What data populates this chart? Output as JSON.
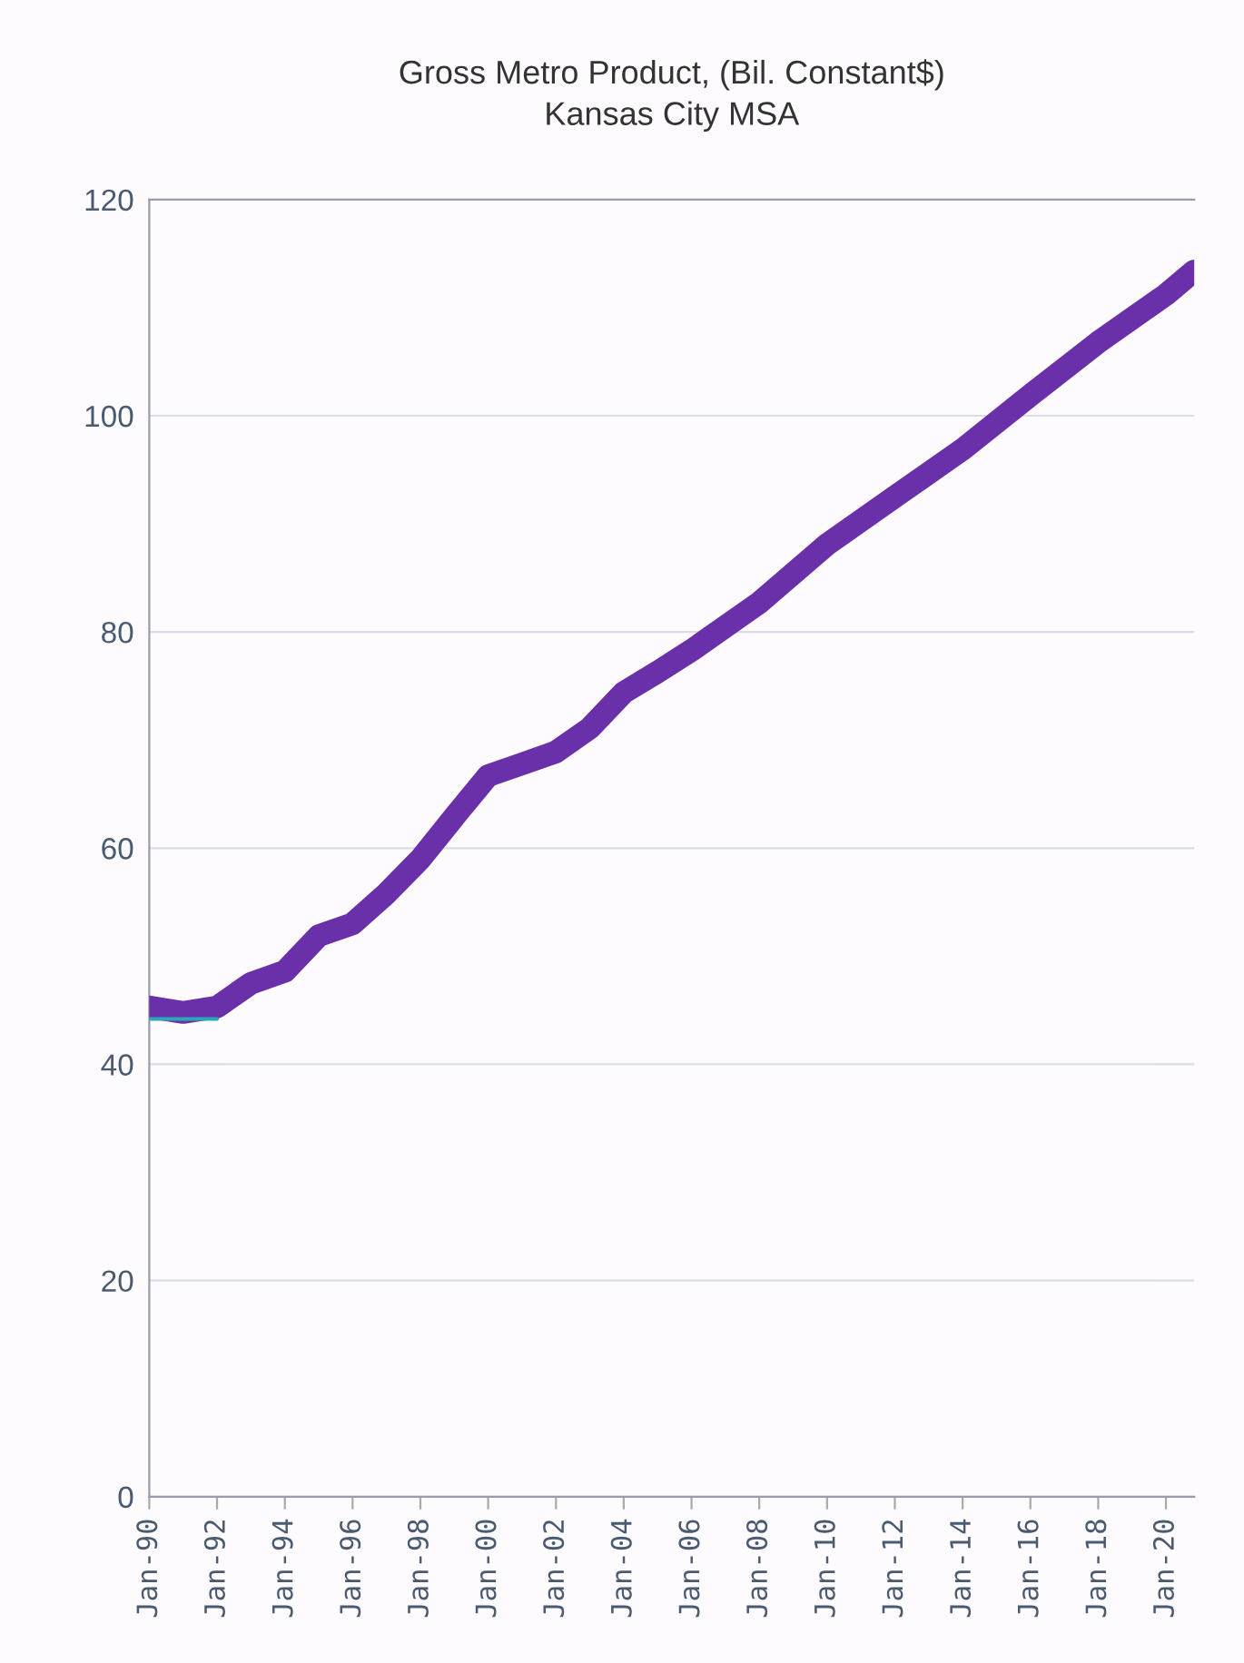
{
  "chart_data": {
    "type": "line",
    "title": "Gross Metro Product, (Bil. Constant$)",
    "subtitle": "Kansas City MSA",
    "x": [
      "1990-01",
      "1991-01",
      "1992-01",
      "1993-01",
      "1994-01",
      "1995-01",
      "1996-01",
      "1997-01",
      "1998-01",
      "1999-01",
      "2000-01",
      "2001-01",
      "2002-01",
      "2003-01",
      "2004-01",
      "2005-01",
      "2006-01",
      "2008-01",
      "2010-01",
      "2012-01",
      "2014-01",
      "2016-01",
      "2018-01",
      "2020-01",
      "2020-11"
    ],
    "series": [
      {
        "color": "#6a30aa",
        "values": [
          45.3,
          44.8,
          45.3,
          47.5,
          48.6,
          51.9,
          53,
          55.8,
          59,
          62.9,
          66.7,
          67.8,
          68.9,
          71.1,
          74.4,
          76.3,
          78.3,
          82.7,
          88.1,
          92.5,
          96.9,
          101.9,
          106.8,
          111.2,
          113.4
        ]
      },
      {
        "color": "#2aa8b8",
        "x": [
          "1990-01",
          "1992-01"
        ],
        "values": [
          44.2,
          44.2
        ]
      }
    ],
    "xlim": [
      "1990-01",
      "2020-11"
    ],
    "xticks": [
      {
        "value": "1990-01",
        "label": "Jan-90"
      },
      {
        "value": "1992-01",
        "label": "Jan-92"
      },
      {
        "value": "1994-01",
        "label": "Jan-94"
      },
      {
        "value": "1996-01",
        "label": "Jan-96"
      },
      {
        "value": "1998-01",
        "label": "Jan-98"
      },
      {
        "value": "2000-01",
        "label": "Jan-00"
      },
      {
        "value": "2002-01",
        "label": "Jan-02"
      },
      {
        "value": "2004-01",
        "label": "Jan-04"
      },
      {
        "value": "2006-01",
        "label": "Jan-06"
      },
      {
        "value": "2008-01",
        "label": "Jan-08"
      },
      {
        "value": "2010-01",
        "label": "Jan-10"
      },
      {
        "value": "2012-01",
        "label": "Jan-12"
      },
      {
        "value": "2014-01",
        "label": "Jan-14"
      },
      {
        "value": "2016-01",
        "label": "Jan-16"
      },
      {
        "value": "2018-01",
        "label": "Jan-18"
      },
      {
        "value": "2020-01",
        "label": "Jan-20"
      }
    ],
    "ylim": [
      0,
      120
    ],
    "yticks": [
      0,
      20,
      40,
      60,
      80,
      100,
      120
    ],
    "grid": "y",
    "legend": false,
    "marker": "none",
    "line_style": "solid"
  }
}
